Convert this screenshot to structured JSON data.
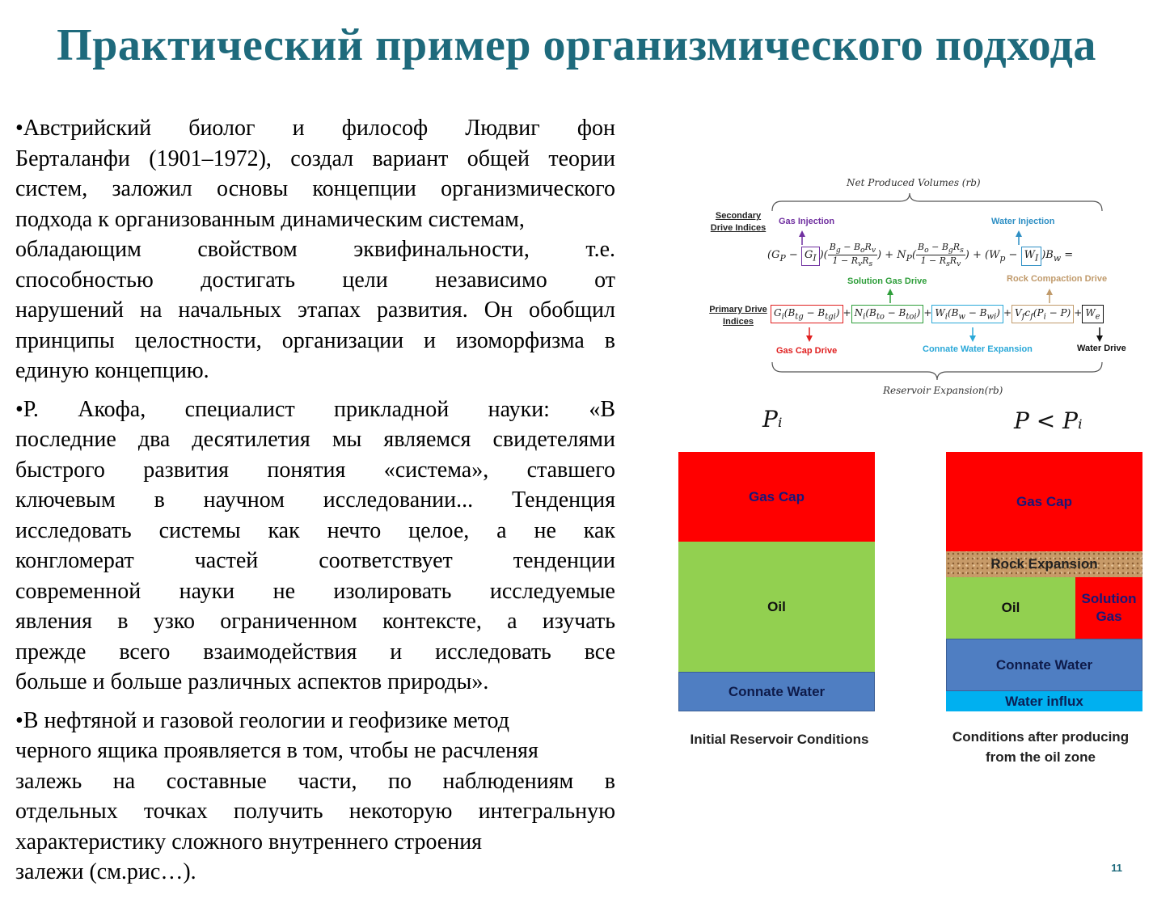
{
  "slide": {
    "title": "Практический пример организмического подхода",
    "page_number": "11"
  },
  "paragraphs": [
    {
      "lines": [
        "•Австрийский биолог и философ Людвиг фон",
        "Берталанфи (1901–1972), создал вариант общей теории",
        "систем, заложил основы концепции организмического",
        "подхода к организованным динамическим системам,",
        "обладающим свойством эквифинальности, т.е.",
        "способностью достигать цели независимо от",
        "нарушений на начальных этапах развития. Он обобщил",
        "принципы целостности, организации и изоморфизма в",
        "единую концепцию."
      ]
    },
    {
      "lines": [
        "•Р. Акофа, специалист прикладной науки: «В",
        "последние два десятилетия мы являемся свидетелями",
        "быстрого развития понятия «система», ставшего",
        "ключевым в научном исследовании... Тенденция",
        "исследовать системы как нечто целое, а не как",
        "конгломерат частей соответствует тенденции",
        "современной науки не изолировать исследуемые",
        "явления в узко ограниченном контексте, а изучать",
        "прежде всего взаимодействия и исследовать все",
        "больше и больше различных аспектов природы»."
      ]
    },
    {
      "lines": [
        "•В нефтяной и газовой геологии и геофизике метод",
        "черного ящика проявляется в том, чтобы не расчленяя",
        "залежь на составные части, по наблюдениям в",
        "отдельных точках получить некоторую интегральную",
        "характеристику сложного внутреннего строения",
        "залежи (см.рис…)."
      ]
    }
  ],
  "formula": {
    "top_caption": "Net Produced Volumes (rb)",
    "bottom_caption": "Reservoir Expansion(rb)",
    "secondary_label": "Secondary Drive Indices",
    "primary_label": "Primary Drive Indices",
    "tags": {
      "gas_injection": "Gas Injection",
      "water_injection": "Water Injection",
      "solution_gas_drive": "Solution Gas Drive",
      "rock_compaction_drive": "Rock Compaction Drive",
      "gas_cap_drive": "Gas Cap Drive",
      "connate_water_expansion": "Connate Water Expansion",
      "water_drive": "Water Drive"
    },
    "colors": {
      "gas_injection": "#7030a0",
      "water_injection": "#2e8fc4",
      "solution_gas_drive": "#2e9e3a",
      "rock_compaction_drive": "#c09a6b",
      "gas_cap_drive": "#e02020",
      "connate_water_expansion": "#2aa8d8",
      "water_drive": "#111111"
    }
  },
  "diagrams": {
    "left_label": "Pᵢ",
    "right_label": "P < Pᵢ",
    "initial": {
      "gas_cap": "Gas Cap",
      "oil": "Oil",
      "connate_water": "Connate Water",
      "caption": "Initial Reservoir Conditions"
    },
    "after": {
      "gas_cap": "Gas Cap",
      "rock_expansion": "Rock Expansion",
      "oil": "Oil",
      "solution_gas": "Solution Gas",
      "connate_water": "Connate Water",
      "water_influx": "Water influx",
      "caption": "Conditions after producing from the oil zone"
    }
  }
}
